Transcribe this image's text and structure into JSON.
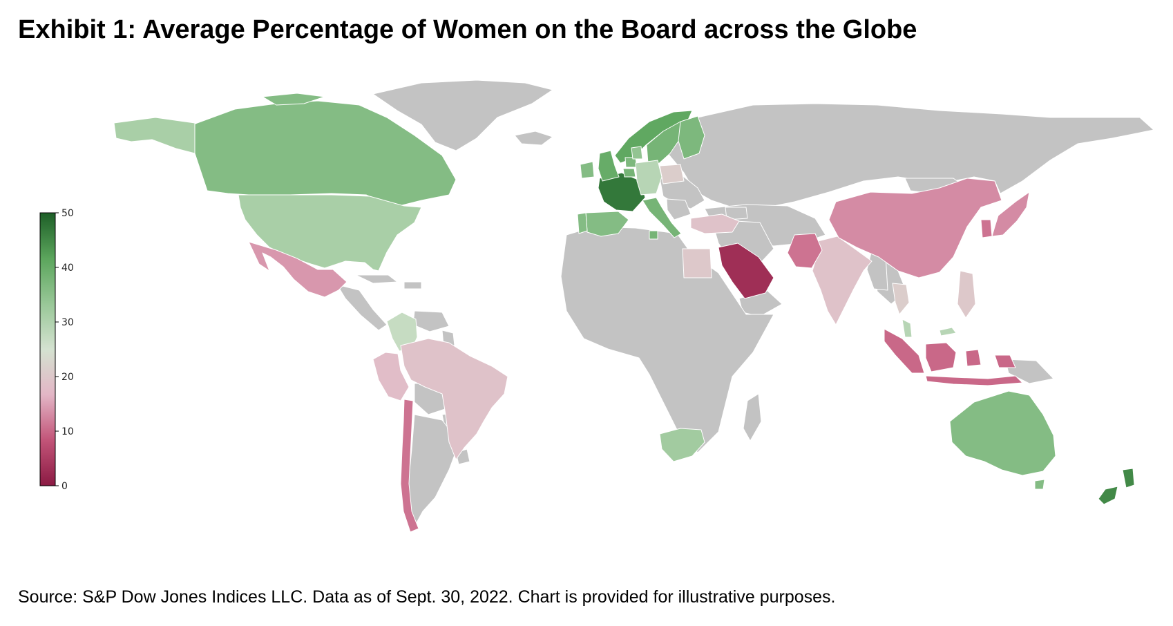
{
  "title": "Exhibit 1: Average Percentage of Women on the Board across the Globe",
  "source": "Source: S&P Dow Jones Indices LLC. Data as of Sept. 30, 2022. Chart is provided for illustrative purposes.",
  "chart_data": {
    "type": "choropleth",
    "colorbar": {
      "min": 0,
      "max": 50,
      "ticks": [
        0,
        10,
        20,
        30,
        40,
        50
      ],
      "colors": [
        "#8b1a43",
        "#c25478",
        "#e3b6c6",
        "#d4e2d0",
        "#98c797",
        "#5ba55c",
        "#1d5e27"
      ]
    },
    "no_data_color": "#c3c3c3",
    "countries": [
      {
        "name": "France",
        "value": 47
      },
      {
        "name": "New Zealand",
        "value": 45
      },
      {
        "name": "United Kingdom",
        "value": 40
      },
      {
        "name": "Norway",
        "value": 41
      },
      {
        "name": "Sweden",
        "value": 38
      },
      {
        "name": "Finland",
        "value": 37
      },
      {
        "name": "Canada",
        "value": 36
      },
      {
        "name": "Australia",
        "value": 36
      },
      {
        "name": "Spain",
        "value": 36
      },
      {
        "name": "Italy",
        "value": 38
      },
      {
        "name": "Belgium",
        "value": 38
      },
      {
        "name": "Netherlands",
        "value": 37
      },
      {
        "name": "Portugal",
        "value": 36
      },
      {
        "name": "Ireland",
        "value": 36
      },
      {
        "name": "Denmark",
        "value": 34
      },
      {
        "name": "United States",
        "value": 31
      },
      {
        "name": "South Africa",
        "value": 32
      },
      {
        "name": "Germany",
        "value": 29
      },
      {
        "name": "Colombia",
        "value": 27
      },
      {
        "name": "Poland",
        "value": 21
      },
      {
        "name": "Thailand",
        "value": 21
      },
      {
        "name": "India",
        "value": 19
      },
      {
        "name": "Brazil",
        "value": 19
      },
      {
        "name": "Peru",
        "value": 18
      },
      {
        "name": "Turkey",
        "value": 19
      },
      {
        "name": "Egypt",
        "value": 20
      },
      {
        "name": "Philippines",
        "value": 20
      },
      {
        "name": "Malaysia",
        "value": 29
      },
      {
        "name": "Mexico",
        "value": 14
      },
      {
        "name": "China",
        "value": 13
      },
      {
        "name": "Japan",
        "value": 13
      },
      {
        "name": "Korea",
        "value": 11
      },
      {
        "name": "Indonesia",
        "value": 10
      },
      {
        "name": "Pakistan",
        "value": 11
      },
      {
        "name": "Chile",
        "value": 11
      },
      {
        "name": "Saudi Arabia",
        "value": 3
      }
    ]
  }
}
